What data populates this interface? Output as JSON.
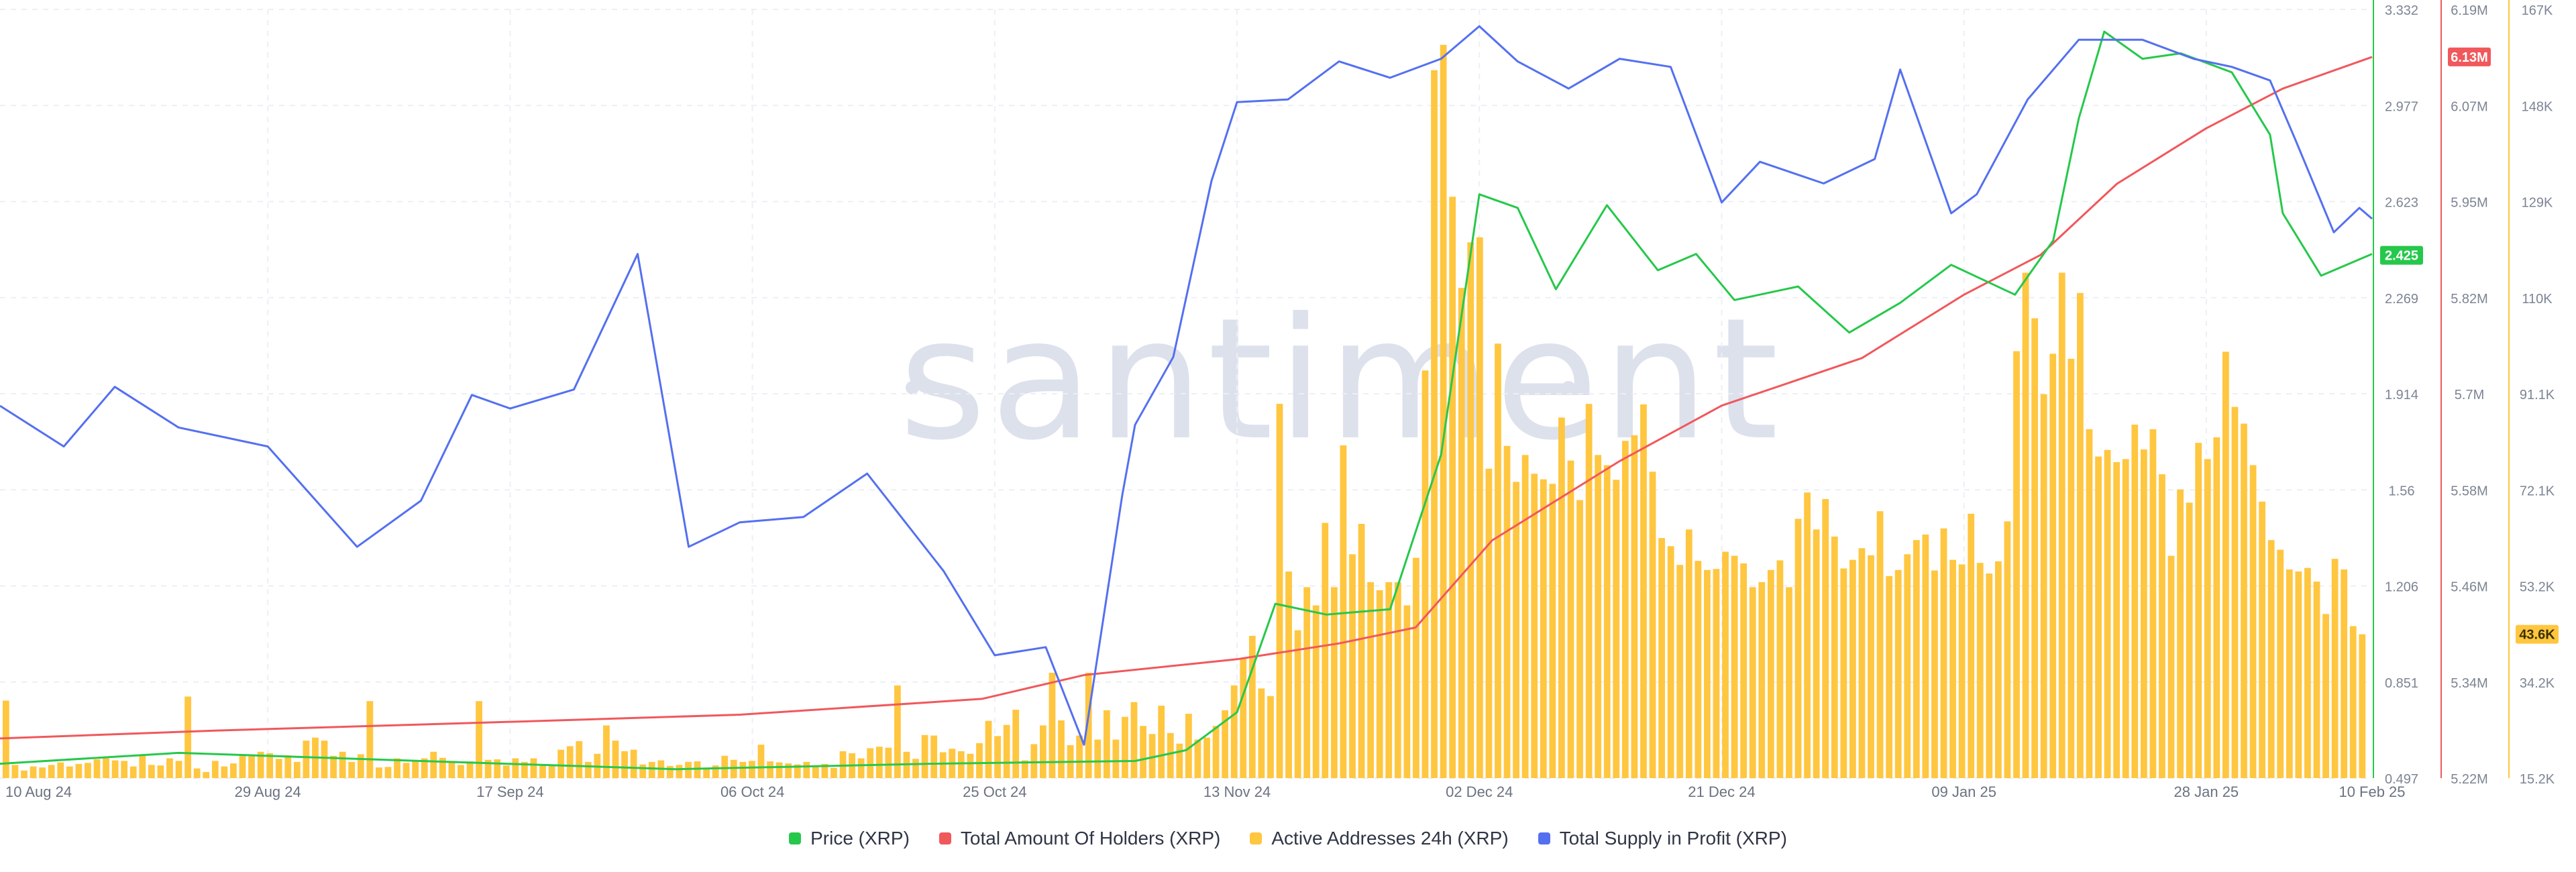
{
  "watermark": "santiment",
  "legend": [
    {
      "label": "Price (XRP)",
      "color": "#26c84b"
    },
    {
      "label": "Total Amount Of Holders (XRP)",
      "color": "#f0585c"
    },
    {
      "label": "Active Addresses 24h (XRP)",
      "color": "#ffc640"
    },
    {
      "label": "Total Supply in Profit (XRP)",
      "color": "#5470f0"
    }
  ],
  "chart_data": {
    "type": "bar+line",
    "x_start": "2024-08-08",
    "x_end": "2025-02-10",
    "x_ticks": [
      "10 Aug 24",
      "29 Aug 24",
      "17 Sep 24",
      "06 Oct 24",
      "25 Oct 24",
      "13 Nov 24",
      "02 Dec 24",
      "21 Dec 24",
      "09 Jan 25",
      "28 Jan 25",
      "10 Feb 25"
    ],
    "grid": true,
    "axes": [
      {
        "id": "price",
        "color": "#26c84b",
        "min": 0.497,
        "max": 3.332,
        "ticks": [
          "3.332",
          "2.977",
          "2.623",
          "2.269",
          "1.914",
          "1.56",
          "1.206",
          "0.851",
          "0.497"
        ],
        "last_value": "2.425"
      },
      {
        "id": "holders",
        "color": "#f0585c",
        "min": 5.22,
        "max": 6.19,
        "ticks": [
          "6.19M",
          "6.07M",
          "5.95M",
          "5.82M",
          "5.7M",
          "5.58M",
          "5.46M",
          "5.34M",
          "5.22M"
        ],
        "last_value": "6.13M"
      },
      {
        "id": "active",
        "color": "#ffc640",
        "min": 15.2,
        "max": 167,
        "ticks": [
          "167K",
          "148K",
          "129K",
          "110K",
          "91.1K",
          "72.1K",
          "53.2K",
          "34.2K",
          "15.2K"
        ],
        "last_value": "43.6K"
      }
    ],
    "series": [
      {
        "name": "Active Addresses 24h (XRP)",
        "type": "bar",
        "axis": "active",
        "color": "#ffc640",
        "values": [
          30.5,
          17.8,
          16.7,
          17.5,
          17.3,
          17.8,
          18.3,
          17.5,
          18.0,
          18.2,
          18.9,
          19.1,
          18.7,
          18.6,
          17.5,
          19.9,
          17.8,
          17.7,
          19.1,
          18.6,
          31.3,
          17.1,
          16.4,
          18.6,
          17.5,
          18.1,
          19.7,
          19.5,
          20.4,
          20.1,
          19.0,
          19.7,
          18.4,
          22.6,
          23.2,
          22.6,
          19.6,
          20.4,
          18.4,
          19.9,
          30.4,
          17.3,
          17.4,
          19.1,
          18.2,
          18.5,
          19.1,
          20.4,
          19.2,
          18.6,
          17.8,
          18.5,
          30.4,
          18.8,
          18.9,
          17.7,
          19.1,
          18.4,
          19.1,
          17.9,
          17.7,
          20.8,
          21.5,
          22.5,
          18.4,
          20.0,
          25.6,
          22.6,
          20.5,
          20.8,
          17.9,
          18.4,
          18.7,
          17.6,
          17.8,
          18.4,
          18.5,
          17.2,
          17.7,
          19.6,
          18.8,
          18.4,
          18.6,
          21.8,
          18.5,
          18.3,
          18.1,
          17.9,
          18.4,
          17.7,
          18.0,
          17.2,
          20.5,
          20.1,
          19.1,
          21.1,
          21.4,
          21.2,
          33.5,
          20.4,
          19.0,
          23.7,
          23.6,
          20.3,
          21.0,
          20.5,
          20.0,
          22.1,
          26.5,
          23.5,
          25.7,
          28.7,
          18.7,
          21.9,
          25.6,
          36.0,
          26.6,
          21.7,
          23.6,
          36.0,
          22.8,
          28.6,
          22.8,
          27.3,
          30.2,
          25.5,
          23.9,
          29.5,
          24.1,
          22.0,
          27.9,
          22.8,
          23.2,
          25.5,
          28.6,
          33.5,
          38.9,
          43.3,
          32.9,
          31.4,
          89.1,
          56.0,
          44.4,
          52.9,
          49.3,
          65.6,
          52.9,
          80.9,
          59.4,
          65.4,
          53.9,
          52.3,
          53.9,
          53.9,
          49.3,
          58.7,
          95.7,
          155.0,
          160.0,
          130.0,
          112.0,
          121.0,
          122.0,
          76.3,
          101.0,
          80.8,
          73.7,
          79.0,
          75.3,
          74.2,
          73.3,
          86.4,
          77.9,
          70.1,
          89.1,
          79.0,
          77.0,
          74.1,
          81.8,
          82.9,
          89.0,
          75.7,
          62.6,
          61.0,
          57.3,
          64.3,
          58.1,
          56.3,
          56.5,
          59.9,
          59.1,
          57.6,
          52.9,
          53.9,
          56.3,
          58.2,
          52.9,
          66.4,
          71.6,
          64.3,
          70.3,
          62.9,
          56.6,
          58.3,
          60.6,
          59.2,
          67.9,
          55.1,
          56.3,
          59.4,
          62.2,
          63.3,
          56.2,
          64.5,
          58.3,
          57.4,
          67.4,
          57.7,
          55.6,
          58.0,
          65.9,
          99.5,
          115.0,
          106.0,
          91.0,
          99.0,
          115.0,
          98.0,
          111.0,
          84.1,
          78.7,
          80.0,
          77.6,
          78.2,
          85.0,
          80.1,
          84.1,
          75.2,
          59.1,
          72.2,
          69.6,
          81.4,
          78.2,
          82.5,
          99.4,
          88.5,
          85.2,
          77.0,
          69.8,
          62.2,
          60.3,
          56.4,
          56.0,
          56.7,
          54.0,
          47.6,
          58.5,
          56.4,
          45.2,
          43.6
        ],
        "labels_sample": {
          "peak": "160.0K on 02 Dec 24",
          "last": "43.6K"
        }
      },
      {
        "name": "Total Amount Of Holders (XRP)",
        "type": "line",
        "axis": "holders",
        "color": "#f0585c",
        "x": [
          "2024-08-08",
          "2024-08-25",
          "2024-09-15",
          "2024-10-05",
          "2024-10-24",
          "2024-11-01",
          "2024-11-13",
          "2024-11-21",
          "2024-11-27",
          "2024-12-03",
          "2024-12-13",
          "2024-12-21",
          "2025-01-01",
          "2025-01-09",
          "2025-01-15",
          "2025-01-21",
          "2025-01-28",
          "2025-02-03",
          "2025-02-10"
        ],
        "values": [
          5.27,
          5.28,
          5.29,
          5.3,
          5.32,
          5.35,
          5.37,
          5.39,
          5.41,
          5.52,
          5.62,
          5.69,
          5.75,
          5.83,
          5.88,
          5.97,
          6.04,
          6.09,
          6.13
        ]
      },
      {
        "name": "Price (XRP)",
        "type": "line",
        "axis": "price",
        "color": "#26c84b",
        "x": [
          "2024-08-08",
          "2024-08-22",
          "2024-09-10",
          "2024-09-30",
          "2024-10-20",
          "2024-11-05",
          "2024-11-09",
          "2024-11-13",
          "2024-11-16",
          "2024-11-20",
          "2024-11-25",
          "2024-11-29",
          "2024-12-02",
          "2024-12-05",
          "2024-12-08",
          "2024-12-12",
          "2024-12-16",
          "2024-12-19",
          "2024-12-22",
          "2024-12-27",
          "2024-12-31",
          "2025-01-04",
          "2025-01-08",
          "2025-01-13",
          "2025-01-16",
          "2025-01-18",
          "2025-01-20",
          "2025-01-23",
          "2025-01-26",
          "2025-01-30",
          "2025-02-02",
          "2025-02-03",
          "2025-02-06",
          "2025-02-10"
        ],
        "values": [
          0.55,
          0.59,
          0.56,
          0.53,
          0.55,
          0.56,
          0.6,
          0.74,
          1.14,
          1.1,
          1.12,
          1.69,
          2.65,
          2.6,
          2.3,
          2.61,
          2.37,
          2.43,
          2.26,
          2.31,
          2.14,
          2.25,
          2.39,
          2.28,
          2.48,
          2.93,
          3.25,
          3.15,
          3.17,
          3.1,
          2.87,
          2.58,
          2.35,
          2.43
        ]
      },
      {
        "name": "Total Supply in Profit (XRP)",
        "type": "line",
        "axis": "price",
        "color": "#5470f0",
        "x": [
          "2024-08-08",
          "2024-08-13",
          "2024-08-17",
          "2024-08-22",
          "2024-08-29",
          "2024-09-05",
          "2024-09-10",
          "2024-09-14",
          "2024-09-17",
          "2024-09-22",
          "2024-09-27",
          "2024-10-01",
          "2024-10-05",
          "2024-10-10",
          "2024-10-15",
          "2024-10-21",
          "2024-10-25",
          "2024-10-29",
          "2024-11-01",
          "2024-11-04",
          "2024-11-05",
          "2024-11-08",
          "2024-11-11",
          "2024-11-13",
          "2024-11-17",
          "2024-11-21",
          "2024-11-25",
          "2024-11-29",
          "2024-12-02",
          "2024-12-05",
          "2024-12-09",
          "2024-12-13",
          "2024-12-17",
          "2024-12-21",
          "2024-12-24",
          "2024-12-29",
          "2025-01-02",
          "2025-01-04",
          "2025-01-08",
          "2025-01-10",
          "2025-01-14",
          "2025-01-18",
          "2025-01-23",
          "2025-01-27",
          "2025-01-30",
          "2025-02-02",
          "2025-02-04",
          "2025-02-07",
          "2025-02-09",
          "2025-02-10"
        ],
        "values": [
          1.87,
          1.72,
          1.94,
          1.79,
          1.72,
          1.35,
          1.52,
          1.91,
          1.86,
          1.93,
          2.43,
          1.35,
          1.44,
          1.46,
          1.62,
          1.26,
          0.95,
          0.98,
          0.62,
          1.54,
          1.8,
          2.05,
          2.7,
          2.99,
          3.0,
          3.14,
          3.08,
          3.15,
          3.27,
          3.14,
          3.04,
          3.15,
          3.12,
          2.62,
          2.77,
          2.69,
          2.78,
          3.11,
          2.58,
          2.65,
          3.0,
          3.22,
          3.22,
          3.15,
          3.12,
          3.07,
          2.85,
          2.51,
          2.6,
          2.56
        ]
      }
    ]
  }
}
